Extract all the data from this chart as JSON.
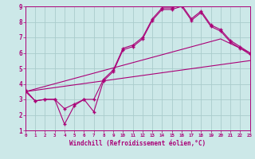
{
  "xlabel": "Windchill (Refroidissement éolien,°C)",
  "bg_color": "#cce8e8",
  "grid_color": "#aacccc",
  "line_color": "#aa0077",
  "xlim": [
    0,
    23
  ],
  "ylim": [
    1,
    9
  ],
  "xticks": [
    0,
    1,
    2,
    3,
    4,
    5,
    6,
    7,
    8,
    9,
    10,
    11,
    12,
    13,
    14,
    15,
    16,
    17,
    18,
    19,
    20,
    21,
    22,
    23
  ],
  "yticks": [
    1,
    2,
    3,
    4,
    5,
    6,
    7,
    8,
    9
  ],
  "line1_x": [
    0,
    1,
    2,
    3,
    4,
    5,
    6,
    7,
    8,
    9,
    10,
    11,
    12,
    13,
    14,
    15,
    16,
    17,
    18,
    19,
    20,
    21,
    22,
    23
  ],
  "line1_y": [
    3.6,
    2.9,
    3.0,
    3.0,
    2.4,
    2.7,
    3.0,
    3.0,
    4.3,
    4.9,
    6.3,
    6.5,
    7.0,
    8.2,
    8.9,
    8.9,
    9.1,
    8.2,
    8.7,
    7.8,
    7.5,
    6.8,
    6.4,
    6.0
  ],
  "line2_x": [
    0,
    1,
    2,
    3,
    4,
    5,
    6,
    7,
    8,
    9,
    10,
    11,
    12,
    13,
    14,
    15,
    16,
    17,
    18,
    19,
    20,
    21,
    22,
    23
  ],
  "line2_y": [
    3.5,
    2.9,
    3.0,
    3.0,
    1.4,
    2.6,
    3.0,
    2.2,
    4.2,
    4.8,
    6.2,
    6.4,
    6.9,
    8.1,
    8.8,
    8.8,
    9.0,
    8.1,
    8.6,
    7.7,
    7.4,
    6.7,
    6.3,
    5.9
  ],
  "line3_x": [
    0,
    23
  ],
  "line3_y": [
    3.5,
    5.5
  ],
  "line4_x": [
    0,
    20,
    23
  ],
  "line4_y": [
    3.5,
    6.9,
    6.0
  ]
}
